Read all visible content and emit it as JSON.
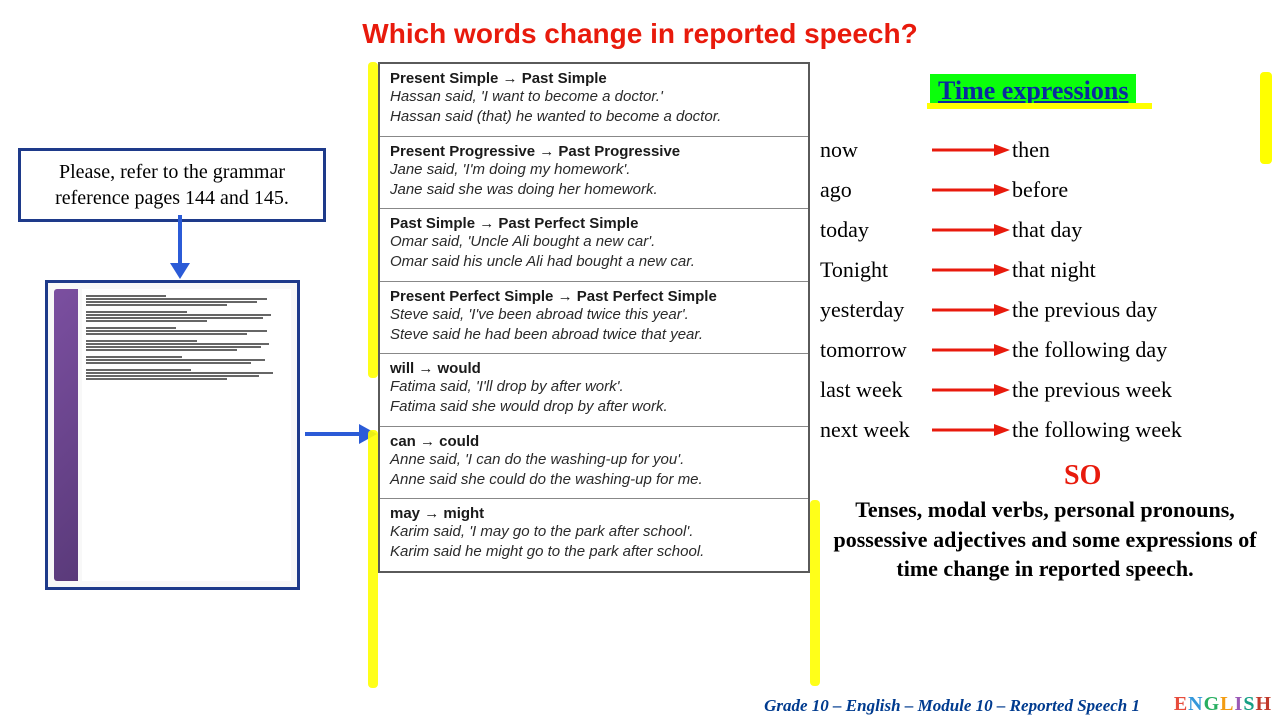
{
  "title": "Which words change in reported speech?",
  "instruction": "Please, refer to the grammar reference pages 144 and 145.",
  "time_header": "Time expressions",
  "so_label": "SO",
  "summary": "Tenses, modal verbs, personal pronouns, possessive adjectives and some expressions of time change in reported speech.",
  "footer": "Grade 10 – English – Module 10 – Reported Speech 1",
  "colors": {
    "title": "#e81a0c",
    "border": "#1e3a8a",
    "arrow_blue": "#2b5bd7",
    "arrow_red": "#e81a0c",
    "highlight": "#ffff00",
    "time_bg": "#0bff0b",
    "time_text": "#0a2aa0"
  },
  "tense_rows": [
    {
      "h": "Present Simple → Past Simple",
      "e1": "Hassan said, 'I want to become a doctor.'",
      "e2": "Hassan said (that) he wanted to become a doctor."
    },
    {
      "h": "Present Progressive → Past Progressive",
      "e1": "Jane said, 'I'm doing my homework'.",
      "e2": "Jane said she was doing her homework."
    },
    {
      "h": "Past Simple → Past Perfect Simple",
      "e1": "Omar said, 'Uncle Ali bought a new car'.",
      "e2": "Omar said his uncle Ali had bought a new car."
    },
    {
      "h": "Present Perfect Simple → Past Perfect Simple",
      "e1": "Steve said, 'I've been abroad twice this year'.",
      "e2": "Steve said he had been abroad twice that year."
    },
    {
      "h": "will → would",
      "e1": "Fatima said, 'I'll drop by after work'.",
      "e2": "Fatima said she would drop by after work."
    },
    {
      "h": "can → could",
      "e1": "Anne said, 'I can do the washing-up for you'.",
      "e2": "Anne said she could do the washing-up for me."
    },
    {
      "h": "may → might",
      "e1": "Karim said, 'I may go to the park after school'.",
      "e2": "Karim said he might go to the park after school."
    }
  ],
  "time_rows": [
    {
      "d": "now",
      "r": "then"
    },
    {
      "d": "ago",
      "r": "before"
    },
    {
      "d": "today",
      "r": "that day"
    },
    {
      "d": "Tonight",
      "r": "that night"
    },
    {
      "d": "yesterday",
      "r": "the previous day"
    },
    {
      "d": "tomorrow",
      "r": "the following day"
    },
    {
      "d": "last week",
      "r": "the previous week"
    },
    {
      "d": "next week",
      "r": "the following week"
    }
  ]
}
